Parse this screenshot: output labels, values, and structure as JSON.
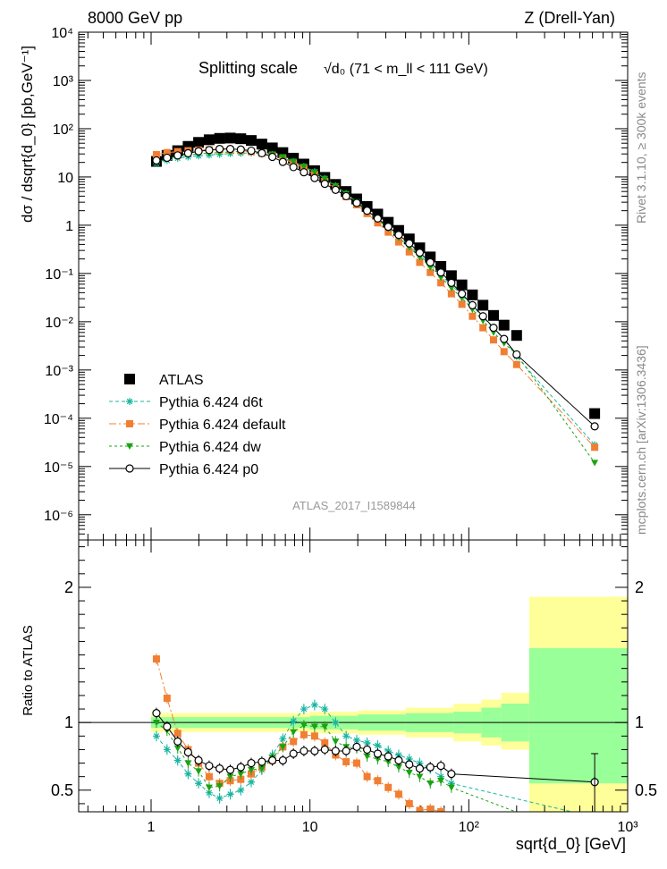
{
  "header": {
    "left": "8000 GeV pp",
    "right": "Z (Drell-Yan)"
  },
  "side_text": {
    "rivet": "Rivet 3.1.10, ≥ 300k events",
    "mcplots": "mcplots.cern.ch [arXiv:1306.3436]"
  },
  "chart_data": {
    "type": "scatter",
    "title": "Splitting scale",
    "title_formula": "√d₀ (71 < m_ll < 111 GeV)",
    "ylabel": "dσ / dsqrt{d_0} [pb,GeV⁻¹]",
    "xlabel": "sqrt{d_0} [GeV]",
    "ratio_ylabel": "Ratio to ATLAS",
    "watermark": "ATLAS_2017_I1589844",
    "xscale": "log",
    "xlim": [
      0.35,
      1000
    ],
    "ylim": [
      3e-07,
      10000
    ],
    "ratio_ylim": [
      0.34,
      2.35
    ],
    "x_ticks": [
      "1",
      "10",
      "10²",
      "10³"
    ],
    "y_ticks": [
      "10⁻⁶",
      "10⁻⁵",
      "10⁻⁴",
      "10⁻³",
      "10⁻²",
      "10⁻¹",
      "1",
      "10",
      "10²",
      "10³",
      "10⁴"
    ],
    "ratio_ticks": [
      "0.5",
      "1",
      "2"
    ],
    "x": [
      1.08,
      1.26,
      1.47,
      1.71,
      1.99,
      2.32,
      2.7,
      3.15,
      3.67,
      4.27,
      4.98,
      5.8,
      6.75,
      7.87,
      9.16,
      10.7,
      12.4,
      14.5,
      16.9,
      19.7,
      22.9,
      26.7,
      31.1,
      36.2,
      42.2,
      49.1,
      57.2,
      66.7,
      77.7,
      90.5,
      105.4,
      122.8,
      143.1,
      166.7,
      200,
      620
    ],
    "ratio_x": [
      1.08,
      1.26,
      1.47,
      1.71,
      1.99,
      2.32,
      2.7,
      3.15,
      3.67,
      4.27,
      4.98,
      5.8,
      6.75,
      7.87,
      9.16,
      10.7,
      12.4,
      14.5,
      16.9,
      19.7,
      22.9,
      26.7,
      31.1,
      36.2,
      42.2,
      49.1,
      57.2,
      66.7,
      77.7,
      620
    ],
    "ratio_band": {
      "edges": [
        1,
        10,
        20,
        40,
        80,
        120,
        160,
        240,
        1000
      ],
      "inner_low": [
        0.96,
        0.95,
        0.94,
        0.93,
        0.92,
        0.89,
        0.86,
        0.55
      ],
      "inner_high": [
        1.04,
        1.05,
        1.06,
        1.07,
        1.08,
        1.11,
        1.14,
        1.55
      ],
      "outer_low": [
        0.93,
        0.92,
        0.91,
        0.89,
        0.86,
        0.83,
        0.8,
        0.34
      ],
      "outer_high": [
        1.07,
        1.08,
        1.09,
        1.11,
        1.14,
        1.17,
        1.22,
        1.93
      ]
    },
    "series": [
      {
        "name": "ATLAS",
        "color": "#000000",
        "marker": "square",
        "values": [
          21,
          28,
          35,
          43,
          52,
          59,
          63,
          64,
          62,
          57,
          48,
          40,
          32,
          24.5,
          18.5,
          13.5,
          9.8,
          7.0,
          5.0,
          3.5,
          2.45,
          1.7,
          1.15,
          0.78,
          0.52,
          0.34,
          0.22,
          0.14,
          0.09,
          0.058,
          0.036,
          0.022,
          0.0135,
          0.0085,
          0.0052,
          0.000125
        ],
        "ratio": [
          1.0,
          1.0,
          1.0,
          1.0,
          1.0,
          1.0,
          1.0,
          1.0,
          1.0,
          1.0,
          1.0,
          1.0,
          1.0,
          1.0,
          1.0,
          1.0,
          1.0,
          1.0,
          1.0,
          1.0,
          1.0,
          1.0,
          1.0,
          1.0,
          1.0,
          1.0,
          1.0,
          1.0,
          1.0,
          1.0
        ]
      },
      {
        "name": "Pythia 6.424 d6t",
        "color": "#17b5a0",
        "marker": "star",
        "dash": "4,3",
        "values": [
          19,
          22,
          24.5,
          26,
          27.5,
          28.5,
          29.5,
          30.5,
          31,
          31.5,
          30.5,
          29,
          25,
          20.5,
          16.5,
          12.8,
          9.3,
          6.5,
          4.5,
          3.0,
          2.0,
          1.35,
          0.88,
          0.58,
          0.38,
          0.24,
          0.15,
          0.093,
          0.058,
          0.035,
          0.021,
          0.0125,
          0.0074,
          0.0044,
          0.0019,
          2.8e-05
        ],
        "ratio": [
          0.9,
          0.8,
          0.72,
          0.62,
          0.55,
          0.48,
          0.44,
          0.47,
          0.5,
          0.56,
          0.65,
          0.76,
          0.88,
          1.01,
          1.1,
          1.13,
          1.1,
          1.0,
          0.9,
          0.87,
          0.85,
          0.83,
          0.79,
          0.76,
          0.73,
          0.7,
          0.66,
          0.6,
          0.55,
          0.3
        ]
      },
      {
        "name": "Pythia 6.424 default",
        "color": "#f07f32",
        "marker": "square",
        "dash": "8,3,2,3",
        "values": [
          29,
          32,
          33.5,
          35,
          36,
          36.5,
          36.5,
          36,
          35,
          33.5,
          31,
          28,
          24,
          19.5,
          15.2,
          11.2,
          8.1,
          5.7,
          3.9,
          2.65,
          1.75,
          1.12,
          0.72,
          0.45,
          0.28,
          0.17,
          0.105,
          0.064,
          0.038,
          0.023,
          0.013,
          0.0075,
          0.0042,
          0.0024,
          0.0013,
          2.5e-05
        ],
        "ratio": [
          1.47,
          1.18,
          0.92,
          0.8,
          0.7,
          0.6,
          0.55,
          0.57,
          0.58,
          0.62,
          0.67,
          0.72,
          0.82,
          0.86,
          0.91,
          0.9,
          0.85,
          0.76,
          0.71,
          0.7,
          0.6,
          0.57,
          0.52,
          0.47,
          0.4,
          0.35,
          0.36,
          0.34,
          0.33,
          0.2
        ]
      },
      {
        "name": "Pythia 6.424 dw",
        "color": "#1aa312",
        "marker": "tri_down",
        "dash": "3,3",
        "values": [
          20,
          24,
          26.5,
          28.5,
          30,
          31,
          32,
          33,
          33.5,
          33.5,
          32,
          29.5,
          26,
          21,
          16.5,
          12.6,
          9.2,
          6.5,
          4.5,
          3.05,
          2.0,
          1.32,
          0.86,
          0.55,
          0.35,
          0.22,
          0.135,
          0.083,
          0.05,
          0.031,
          0.018,
          0.0105,
          0.006,
          0.0036,
          0.0021,
          1.2e-05
        ],
        "ratio": [
          1.0,
          0.94,
          0.81,
          0.7,
          0.64,
          0.52,
          0.53,
          0.6,
          0.62,
          0.65,
          0.66,
          0.74,
          0.82,
          0.93,
          0.98,
          0.97,
          0.97,
          0.86,
          0.82,
          0.81,
          0.75,
          0.73,
          0.71,
          0.67,
          0.63,
          0.6,
          0.55,
          0.57,
          0.52,
          0.12
        ]
      },
      {
        "name": "Pythia 6.424 p0",
        "color": "#000000",
        "marker": "circle_open",
        "dash": "",
        "values": [
          22,
          25,
          28,
          31,
          34,
          36,
          38,
          38,
          37,
          35,
          31,
          26,
          20.5,
          16,
          12.5,
          9.5,
          7.2,
          5.4,
          4.0,
          2.9,
          2.0,
          1.38,
          0.93,
          0.63,
          0.42,
          0.27,
          0.17,
          0.105,
          0.064,
          0.038,
          0.022,
          0.013,
          0.0075,
          0.0044,
          0.0021,
          6.8e-05
        ],
        "ratio": [
          1.07,
          0.97,
          0.86,
          0.78,
          0.72,
          0.68,
          0.66,
          0.65,
          0.67,
          0.7,
          0.71,
          0.72,
          0.72,
          0.77,
          0.79,
          0.79,
          0.8,
          0.79,
          0.79,
          0.82,
          0.8,
          0.77,
          0.75,
          0.72,
          0.69,
          0.66,
          0.67,
          0.68,
          0.62,
          0.56
        ]
      }
    ]
  }
}
